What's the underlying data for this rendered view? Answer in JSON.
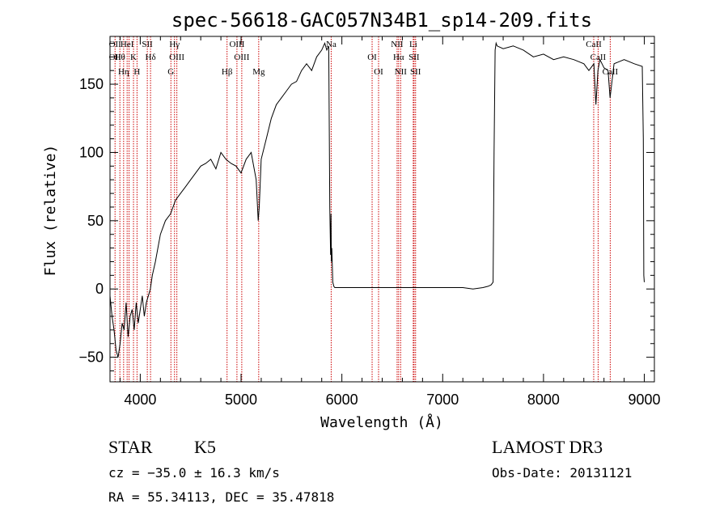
{
  "chart_data": {
    "type": "line",
    "title": "spec-56618-GAC057N34B1_sp14-209.fits",
    "xlabel": "Wavelength (Å)",
    "ylabel": "Flux (relative)",
    "xlim": [
      3700,
      9100
    ],
    "ylim": [
      -68,
      185
    ],
    "xticks": [
      4000,
      5000,
      6000,
      7000,
      8000,
      9000
    ],
    "xtick_labels": [
      "4000",
      "5000",
      "6000",
      "7000",
      "8000",
      "9000"
    ],
    "yticks": [
      -50,
      0,
      50,
      100,
      150
    ],
    "ytick_labels": [
      "−50",
      "0",
      "50",
      "100",
      "150"
    ],
    "grid": false,
    "line_color": "#000000",
    "marker_color": "#cc0000",
    "series": [
      {
        "name": "",
        "x": [
          3700,
          3720,
          3740,
          3760,
          3780,
          3800,
          3820,
          3840,
          3860,
          3880,
          3900,
          3920,
          3940,
          3960,
          3980,
          4000,
          4020,
          4040,
          4060,
          4080,
          4100,
          4120,
          4150,
          4200,
          4250,
          4300,
          4350,
          4400,
          4450,
          4500,
          4550,
          4600,
          4650,
          4700,
          4750,
          4800,
          4850,
          4900,
          4950,
          5000,
          5050,
          5100,
          5150,
          5170,
          5180,
          5200,
          5250,
          5300,
          5350,
          5400,
          5450,
          5500,
          5550,
          5600,
          5650,
          5700,
          5750,
          5800,
          5830,
          5850,
          5870,
          5880,
          5888,
          5892,
          5896,
          5900,
          5910,
          5920,
          5930,
          6000,
          6500,
          7000,
          7200,
          7300,
          7400,
          7450,
          7480,
          7500,
          7510,
          7520,
          7530,
          7540,
          7600,
          7700,
          7800,
          7900,
          8000,
          8100,
          8200,
          8300,
          8400,
          8450,
          8500,
          8520,
          8540,
          8560,
          8600,
          8640,
          8660,
          8700,
          8800,
          8900,
          8980,
          8990,
          8995,
          9000
        ],
        "y": [
          -5,
          -20,
          -30,
          -45,
          -50,
          -40,
          -25,
          -30,
          -10,
          -35,
          -20,
          -15,
          -30,
          -10,
          -25,
          -15,
          -5,
          -20,
          -10,
          -5,
          0,
          10,
          20,
          40,
          50,
          55,
          65,
          70,
          75,
          80,
          85,
          90,
          92,
          95,
          88,
          100,
          95,
          92,
          90,
          85,
          95,
          100,
          80,
          50,
          60,
          95,
          110,
          125,
          135,
          140,
          145,
          150,
          152,
          160,
          165,
          160,
          170,
          175,
          180,
          175,
          178,
          60,
          25,
          55,
          20,
          30,
          5,
          2,
          1,
          1,
          1,
          1,
          1,
          0,
          1,
          2,
          3,
          5,
          100,
          175,
          180,
          178,
          176,
          178,
          175,
          170,
          172,
          168,
          170,
          168,
          165,
          160,
          165,
          135,
          160,
          168,
          162,
          160,
          140,
          165,
          168,
          165,
          163,
          110,
          10,
          5
        ]
      }
    ],
    "line_markers": [
      {
        "wavelength": 3750,
        "labels": [
          "OII",
          "OII"
        ]
      },
      {
        "wavelength": 3798,
        "labels": [
          "Hθ"
        ]
      },
      {
        "wavelength": 3835,
        "labels": [
          "Hη"
        ]
      },
      {
        "wavelength": 3870,
        "labels": [
          "HeI"
        ]
      },
      {
        "wavelength": 3889,
        "labels": []
      },
      {
        "wavelength": 3933,
        "labels": [
          "K"
        ]
      },
      {
        "wavelength": 3968,
        "labels": [
          "H"
        ]
      },
      {
        "wavelength": 4070,
        "labels": [
          "SII"
        ]
      },
      {
        "wavelength": 4102,
        "labels": [
          "Hδ"
        ]
      },
      {
        "wavelength": 4304,
        "labels": [
          "G"
        ]
      },
      {
        "wavelength": 4340,
        "labels": [
          "Hγ"
        ]
      },
      {
        "wavelength": 4363,
        "labels": [
          "OIII"
        ]
      },
      {
        "wavelength": 4861,
        "labels": [
          "Hβ"
        ]
      },
      {
        "wavelength": 4959,
        "labels": [
          "OIII"
        ]
      },
      {
        "wavelength": 5007,
        "labels": [
          "OIII"
        ]
      },
      {
        "wavelength": 5175,
        "labels": [
          "Mg"
        ]
      },
      {
        "wavelength": 5894,
        "labels": [
          "Na"
        ]
      },
      {
        "wavelength": 6300,
        "labels": [
          "OI"
        ]
      },
      {
        "wavelength": 6364,
        "labels": [
          "OI"
        ]
      },
      {
        "wavelength": 6548,
        "labels": [
          "NII"
        ]
      },
      {
        "wavelength": 6563,
        "labels": [
          "Hα"
        ]
      },
      {
        "wavelength": 6583,
        "labels": [
          "NII"
        ]
      },
      {
        "wavelength": 6708,
        "labels": [
          "Li"
        ]
      },
      {
        "wavelength": 6716,
        "labels": [
          "SII"
        ]
      },
      {
        "wavelength": 6731,
        "labels": [
          "SII"
        ]
      },
      {
        "wavelength": 8498,
        "labels": [
          "CaII"
        ]
      },
      {
        "wavelength": 8542,
        "labels": [
          "CaII"
        ]
      },
      {
        "wavelength": 8662,
        "labels": [
          "CaII"
        ]
      }
    ],
    "info": {
      "class_label": "STAR",
      "subclass_label": "K5",
      "survey": "LAMOST DR3",
      "cz": "cz = −35.0 ± 16.3 km/s",
      "obs_date": "Obs-Date: 20131121",
      "radec": "RA =  55.34113, DEC =  35.47818"
    }
  }
}
